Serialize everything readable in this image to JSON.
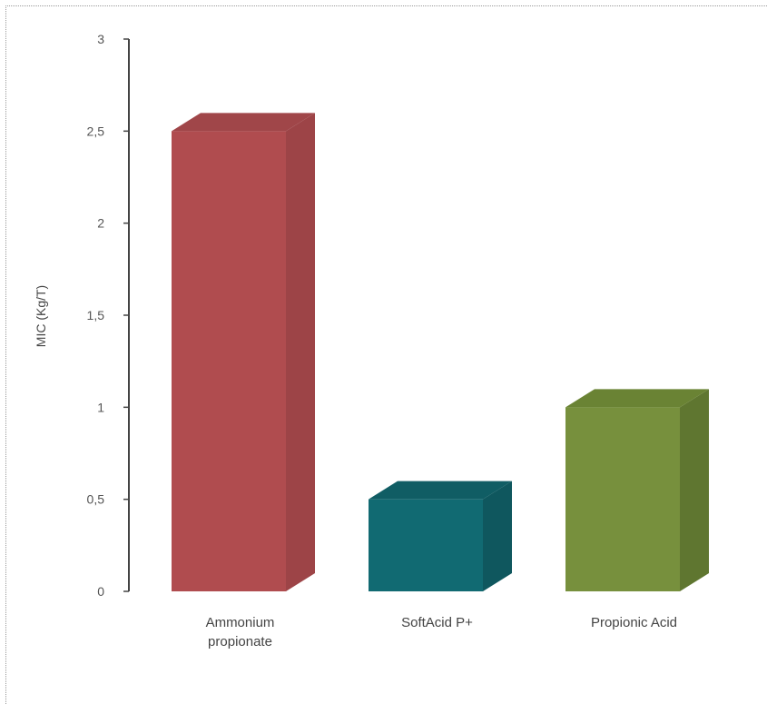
{
  "chart_data": {
    "type": "bar",
    "style": "3d-column",
    "categories": [
      "Ammonium propionate",
      "SoftAcid P+",
      "Propionic Acid"
    ],
    "category_label_lines": [
      [
        "Ammonium",
        "propionate"
      ],
      [
        "SoftAcid P+"
      ],
      [
        "Propionic Acid"
      ]
    ],
    "values": [
      2.5,
      0.5,
      1.0
    ],
    "colors": [
      {
        "front": "#b04c4f",
        "side": "#9d4447",
        "top": "#a04649"
      },
      {
        "front": "#116a72",
        "side": "#0f575e",
        "top": "#105d64"
      },
      {
        "front": "#77903d",
        "side": "#5f7630",
        "top": "#6a8334"
      }
    ],
    "title": "",
    "xlabel": "",
    "ylabel": "MIC (Kg/T)",
    "ylim": [
      0,
      3
    ],
    "yticks": [
      0,
      0.5,
      1,
      1.5,
      2,
      2.5,
      3
    ],
    "ytick_labels": [
      "0",
      "0,5",
      "1",
      "1,5",
      "2",
      "2,5",
      "3"
    ],
    "grid": false,
    "legend": "none"
  }
}
